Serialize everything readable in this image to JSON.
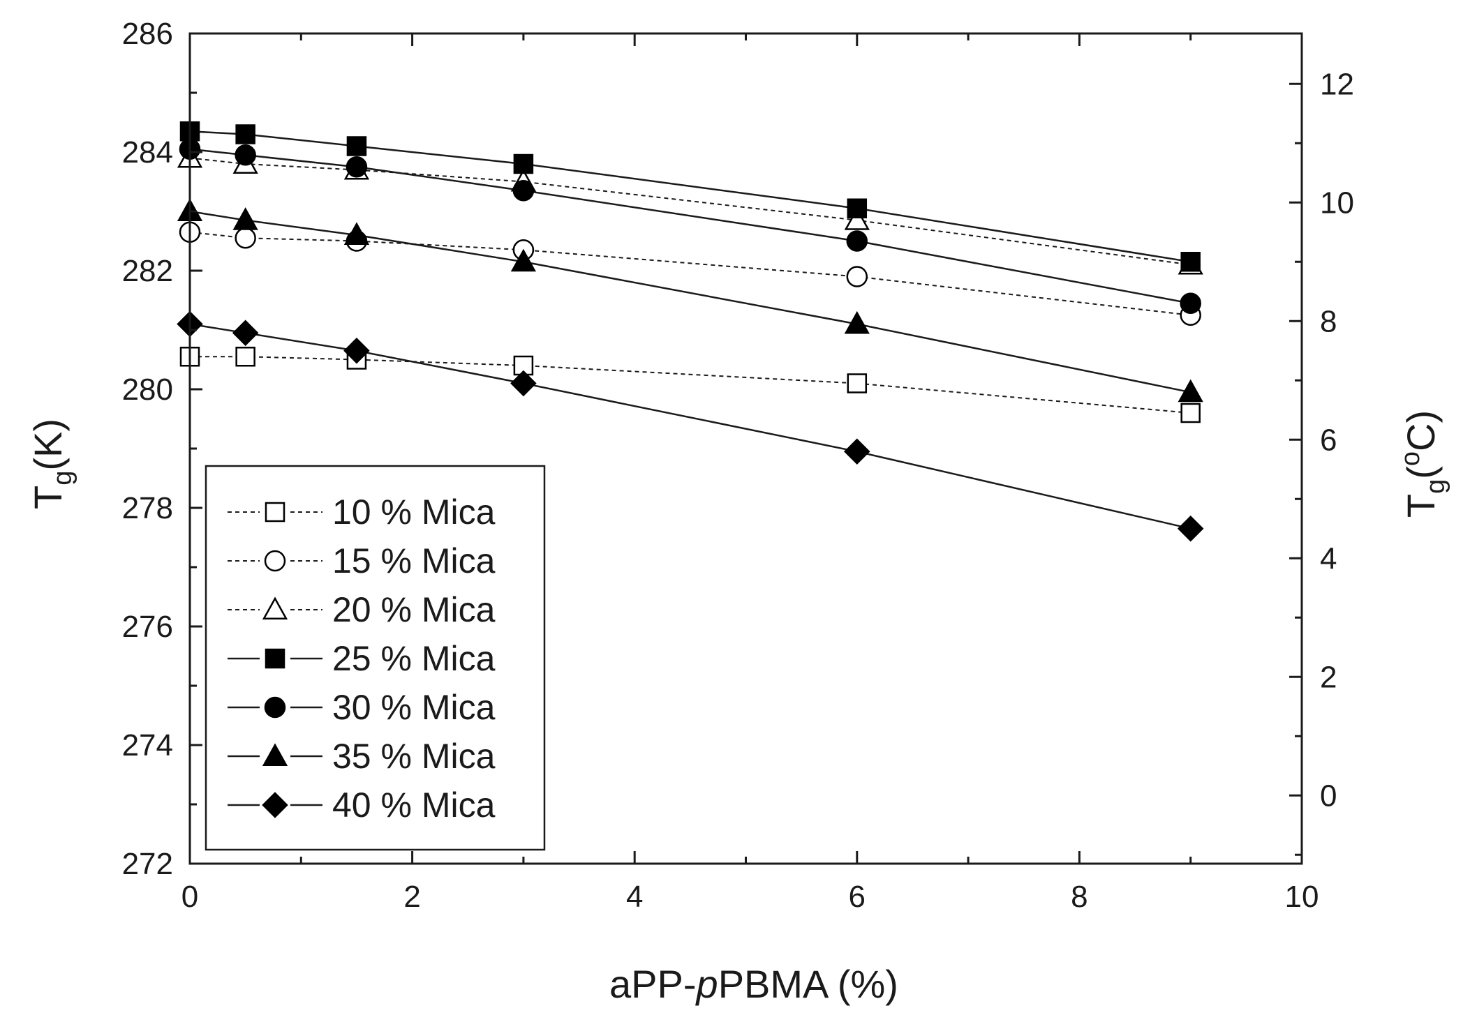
{
  "chart_data": {
    "type": "line",
    "title": "",
    "xlabel": {
      "prefix": "aPP-",
      "italic": "p",
      "suffix": "PBMA (%)"
    },
    "ylabel": {
      "main": "T",
      "sub": "g",
      "unit": "(K)"
    },
    "y2label": {
      "main": "T",
      "sub": "g",
      "open": "(",
      "sup": "o",
      "unit": "C)"
    },
    "xlim": [
      0,
      10
    ],
    "ylim": [
      272,
      286
    ],
    "y2lim": [
      -1.15,
      12.85
    ],
    "xticks": [
      "0",
      "2",
      "4",
      "6",
      "8",
      "10"
    ],
    "xtick_values": [
      0,
      2,
      4,
      6,
      8,
      10
    ],
    "yticks": [
      "272",
      "274",
      "276",
      "278",
      "280",
      "282",
      "284",
      "286"
    ],
    "ytick_values": [
      272,
      274,
      276,
      278,
      280,
      282,
      284,
      286
    ],
    "y2ticks": [
      "0",
      "2",
      "4",
      "6",
      "8",
      "10",
      "12"
    ],
    "y2tick_values": [
      0,
      2,
      4,
      6,
      8,
      10,
      12
    ],
    "x": [
      0,
      0.5,
      1.5,
      3,
      6,
      9
    ],
    "legend_position": "bottom-left",
    "series": [
      {
        "name": "10 % Mica",
        "marker": "square-open",
        "line": "dotted",
        "values": [
          280.55,
          280.55,
          280.5,
          280.4,
          280.1,
          279.6
        ]
      },
      {
        "name": "15 % Mica",
        "marker": "circle-open",
        "line": "dotted",
        "values": [
          282.65,
          282.55,
          282.5,
          282.35,
          281.9,
          281.25
        ]
      },
      {
        "name": "20 % Mica",
        "marker": "triangle-open",
        "line": "dotted",
        "values": [
          283.9,
          283.8,
          283.7,
          283.5,
          282.85,
          282.1
        ]
      },
      {
        "name": "25 % Mica",
        "marker": "square-filled",
        "line": "solid",
        "values": [
          284.35,
          284.3,
          284.1,
          283.8,
          283.05,
          282.15
        ]
      },
      {
        "name": "30 % Mica",
        "marker": "circle-filled",
        "line": "solid",
        "values": [
          284.05,
          283.95,
          283.75,
          283.35,
          282.5,
          281.45
        ]
      },
      {
        "name": "35 % Mica",
        "marker": "triangle-filled",
        "line": "solid",
        "values": [
          283.0,
          282.85,
          282.6,
          282.15,
          281.1,
          279.95
        ]
      },
      {
        "name": "40 % Mica",
        "marker": "diamond-filled",
        "line": "solid",
        "values": [
          281.1,
          280.95,
          280.65,
          280.1,
          278.95,
          277.65
        ]
      }
    ]
  }
}
